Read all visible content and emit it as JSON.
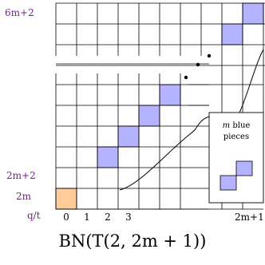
{
  "colors": {
    "blue": "#b3b3ff",
    "orange": "#ffcc99",
    "label": "#7b1f8f"
  },
  "left_labels": {
    "top": "6m+2",
    "mid": "2m+2",
    "low": "2m",
    "corner": "q/t"
  },
  "bottom_labels": [
    "0",
    "1",
    "2",
    "3"
  ],
  "bottom_right_label": "2m+1",
  "callout": {
    "line1": "m blue",
    "line2": "pieces"
  },
  "caption": "BN(T(2, 2m + 1))"
}
